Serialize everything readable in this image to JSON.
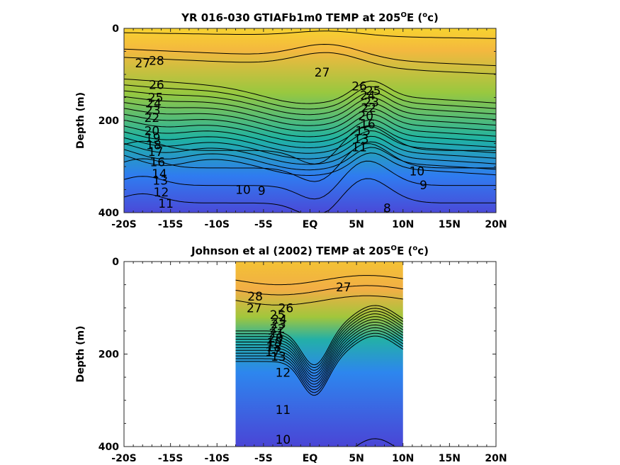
{
  "chart_data": [
    {
      "type": "heatmap",
      "subtype": "filled-contour",
      "title": "YR 016-030 GTIAFb1m0 TEMP at 205",
      "title_deg": "O",
      "title_mid": "E (",
      "title_unit": "o",
      "title_end": "c)",
      "xlabel": "",
      "ylabel": "Depth (m)",
      "x_ticks": [
        -20,
        -15,
        -10,
        -5,
        0,
        5,
        10,
        15,
        20
      ],
      "x_tick_labels": [
        "-20S",
        "-15S",
        "-10S",
        "-5S",
        "EQ",
        "5N",
        "10N",
        "15N",
        "20N"
      ],
      "y_ticks": [
        0,
        200,
        400
      ],
      "y_tick_labels": [
        "0",
        "200",
        "400"
      ],
      "xlim": [
        -20,
        20
      ],
      "ylim": [
        400,
        0
      ],
      "data_xlim": [
        -20,
        20
      ],
      "contour_levels": [
        8,
        9,
        10,
        11,
        12,
        13,
        14,
        15,
        16,
        17,
        18,
        19,
        20,
        21,
        22,
        23,
        24,
        25,
        26,
        27,
        28
      ],
      "contour_labels": [
        {
          "text": "28",
          "lat": -16.5,
          "depth": 70
        },
        {
          "text": "27",
          "lat": -18,
          "depth": 75
        },
        {
          "text": "27",
          "lat": 1.3,
          "depth": 95
        },
        {
          "text": "26",
          "lat": -16.5,
          "depth": 122
        },
        {
          "text": "25",
          "lat": -16.6,
          "depth": 150
        },
        {
          "text": "24",
          "lat": -16.8,
          "depth": 162
        },
        {
          "text": "23",
          "lat": -16.9,
          "depth": 178
        },
        {
          "text": "22",
          "lat": -17.0,
          "depth": 194
        },
        {
          "text": "20",
          "lat": -17.0,
          "depth": 222
        },
        {
          "text": "19",
          "lat": -16.9,
          "depth": 238
        },
        {
          "text": "18",
          "lat": -16.8,
          "depth": 253
        },
        {
          "text": "17",
          "lat": -16.6,
          "depth": 268
        },
        {
          "text": "16",
          "lat": -16.4,
          "depth": 290
        },
        {
          "text": "14",
          "lat": -16.2,
          "depth": 315
        },
        {
          "text": "13",
          "lat": -16.1,
          "depth": 330
        },
        {
          "text": "12",
          "lat": -16.0,
          "depth": 355
        },
        {
          "text": "11",
          "lat": -15.5,
          "depth": 380
        },
        {
          "text": "26",
          "lat": 5.3,
          "depth": 125
        },
        {
          "text": "25",
          "lat": 6.8,
          "depth": 135
        },
        {
          "text": "24",
          "lat": 6.2,
          "depth": 145
        },
        {
          "text": "23",
          "lat": 6.6,
          "depth": 160
        },
        {
          "text": "22",
          "lat": 6.3,
          "depth": 172
        },
        {
          "text": "20",
          "lat": 6.0,
          "depth": 190
        },
        {
          "text": "16",
          "lat": 6.2,
          "depth": 208
        },
        {
          "text": "15",
          "lat": 5.7,
          "depth": 222
        },
        {
          "text": "13",
          "lat": 5.5,
          "depth": 240
        },
        {
          "text": "11",
          "lat": 5.3,
          "depth": 258
        },
        {
          "text": "10",
          "lat": -7.2,
          "depth": 350
        },
        {
          "text": "9",
          "lat": -5.2,
          "depth": 352
        },
        {
          "text": "10",
          "lat": 11.5,
          "depth": 310
        },
        {
          "text": "9",
          "lat": 12.2,
          "depth": 340
        },
        {
          "text": "8",
          "lat": 8.3,
          "depth": 390
        }
      ]
    },
    {
      "type": "heatmap",
      "subtype": "filled-contour",
      "title": "Johnson et al (2002) TEMP at 205",
      "title_deg": "O",
      "title_mid": "E (",
      "title_unit": "o",
      "title_end": "c)",
      "xlabel": "",
      "ylabel": "Depth (m)",
      "x_ticks": [
        -20,
        -15,
        -10,
        -5,
        0,
        5,
        10,
        15,
        20
      ],
      "x_tick_labels": [
        "-20S",
        "-15S",
        "-10S",
        "-5S",
        "EQ",
        "5N",
        "10N",
        "15N",
        "20N"
      ],
      "y_ticks": [
        0,
        200,
        400
      ],
      "y_tick_labels": [
        "0",
        "200",
        "400"
      ],
      "xlim": [
        -20,
        20
      ],
      "ylim": [
        400,
        0
      ],
      "data_xlim": [
        -8,
        10
      ],
      "contour_levels": [
        10,
        11,
        12,
        13,
        14,
        15,
        16,
        17,
        18,
        19,
        20,
        21,
        22,
        23,
        24,
        25,
        26,
        27,
        28
      ],
      "contour_labels": [
        {
          "text": "28",
          "lat": -5.9,
          "depth": 75
        },
        {
          "text": "27",
          "lat": -6.0,
          "depth": 100
        },
        {
          "text": "26",
          "lat": -2.6,
          "depth": 100
        },
        {
          "text": "27",
          "lat": 3.6,
          "depth": 55
        },
        {
          "text": "25",
          "lat": -3.5,
          "depth": 115
        },
        {
          "text": "24",
          "lat": -3.3,
          "depth": 125
        },
        {
          "text": "23",
          "lat": -3.4,
          "depth": 135
        },
        {
          "text": "22",
          "lat": -3.5,
          "depth": 145
        },
        {
          "text": "21",
          "lat": -3.6,
          "depth": 155
        },
        {
          "text": "20",
          "lat": -3.7,
          "depth": 165
        },
        {
          "text": "19",
          "lat": -3.8,
          "depth": 175
        },
        {
          "text": "18",
          "lat": -3.9,
          "depth": 185
        },
        {
          "text": "17",
          "lat": -4.0,
          "depth": 195
        },
        {
          "text": "13",
          "lat": -3.4,
          "depth": 205
        },
        {
          "text": "12",
          "lat": -2.9,
          "depth": 240
        },
        {
          "text": "11",
          "lat": -2.9,
          "depth": 320
        },
        {
          "text": "10",
          "lat": -2.9,
          "depth": 385
        }
      ]
    }
  ]
}
